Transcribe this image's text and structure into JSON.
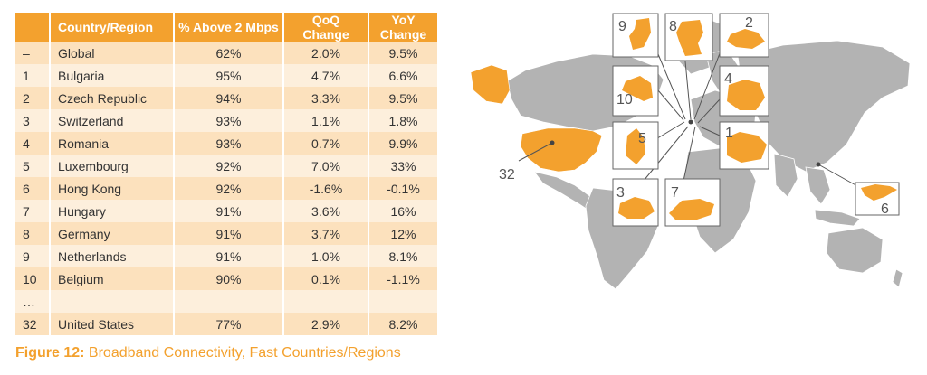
{
  "table": {
    "headers": [
      "",
      "Country/Region",
      "% Above 2 Mbps",
      "QoQ Change",
      "YoY Change"
    ],
    "rows": [
      {
        "rank": "–",
        "country": "Global",
        "above": "62%",
        "qoq": "2.0%",
        "yoy": "9.5%"
      },
      {
        "rank": "1",
        "country": "Bulgaria",
        "above": "95%",
        "qoq": "4.7%",
        "yoy": "6.6%"
      },
      {
        "rank": "2",
        "country": "Czech Republic",
        "above": "94%",
        "qoq": "3.3%",
        "yoy": "9.5%"
      },
      {
        "rank": "3",
        "country": "Switzerland",
        "above": "93%",
        "qoq": "1.1%",
        "yoy": "1.8%"
      },
      {
        "rank": "4",
        "country": "Romania",
        "above": "93%",
        "qoq": "0.7%",
        "yoy": "9.9%"
      },
      {
        "rank": "5",
        "country": "Luxembourg",
        "above": "92%",
        "qoq": "7.0%",
        "yoy": "33%"
      },
      {
        "rank": "6",
        "country": "Hong Kong",
        "above": "92%",
        "qoq": "-1.6%",
        "yoy": "-0.1%"
      },
      {
        "rank": "7",
        "country": "Hungary",
        "above": "91%",
        "qoq": "3.6%",
        "yoy": "16%"
      },
      {
        "rank": "8",
        "country": "Germany",
        "above": "91%",
        "qoq": "3.7%",
        "yoy": "12%"
      },
      {
        "rank": "9",
        "country": "Netherlands",
        "above": "91%",
        "qoq": "1.0%",
        "yoy": "8.1%"
      },
      {
        "rank": "10",
        "country": "Belgium",
        "above": "90%",
        "qoq": "0.1%",
        "yoy": "-1.1%"
      },
      {
        "rank": "…",
        "country": "",
        "above": "",
        "qoq": "",
        "yoy": ""
      },
      {
        "rank": "32",
        "country": "United States",
        "above": "77%",
        "qoq": "2.9%",
        "yoy": "8.2%"
      }
    ]
  },
  "caption": {
    "label": "Figure 12:",
    "text": " Broadband Connectivity, Fast Countries/Regions"
  },
  "map": {
    "labels": [
      "9",
      "8",
      "2",
      "10",
      "4",
      "5",
      "1",
      "3",
      "7",
      "6",
      "32"
    ]
  },
  "colors": {
    "accent": "#f3a12e",
    "row_odd": "#fce1bd",
    "row_even": "#fdefdc",
    "land": "#b3b3b3",
    "highlight": "#f3a12e"
  },
  "chart_data": {
    "type": "table",
    "columns": [
      "",
      "Country/Region",
      "% Above 2 Mbps",
      "QoQ Change",
      "YoY Change"
    ],
    "rows": [
      [
        "–",
        "Global",
        62,
        2.0,
        9.5
      ],
      [
        "1",
        "Bulgaria",
        95,
        4.7,
        6.6
      ],
      [
        "2",
        "Czech Republic",
        94,
        3.3,
        9.5
      ],
      [
        "3",
        "Switzerland",
        93,
        1.1,
        1.8
      ],
      [
        "4",
        "Romania",
        93,
        0.7,
        9.9
      ],
      [
        "5",
        "Luxembourg",
        92,
        7.0,
        33
      ],
      [
        "6",
        "Hong Kong",
        92,
        -1.6,
        -0.1
      ],
      [
        "7",
        "Hungary",
        91,
        3.6,
        16
      ],
      [
        "8",
        "Germany",
        91,
        3.7,
        12
      ],
      [
        "9",
        "Netherlands",
        91,
        1.0,
        8.1
      ],
      [
        "10",
        "Belgium",
        90,
        0.1,
        -1.1
      ],
      [
        "…",
        "",
        null,
        null,
        null
      ],
      [
        "32",
        "United States",
        77,
        2.9,
        8.2
      ]
    ],
    "title": "Figure 12: Broadband Connectivity, Fast Countries/Regions"
  }
}
